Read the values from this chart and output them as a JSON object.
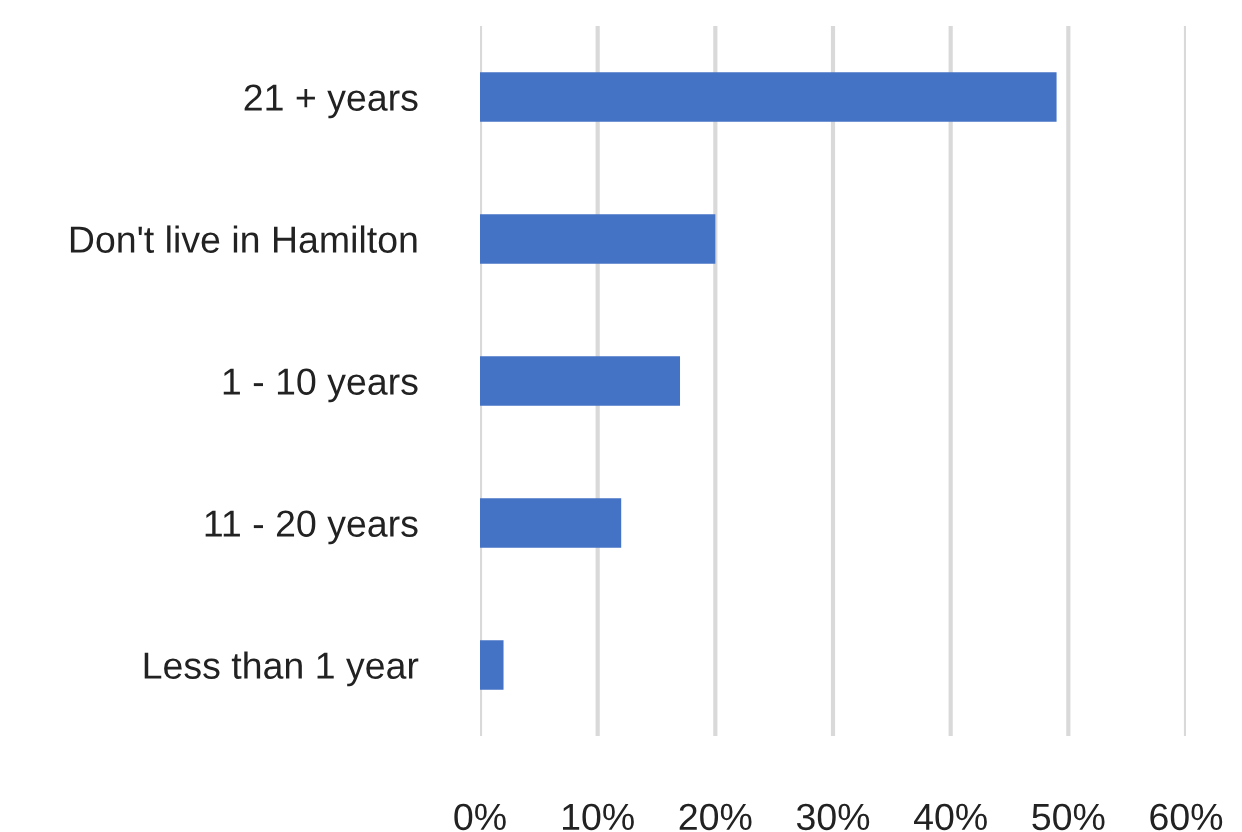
{
  "chart_data": {
    "type": "bar",
    "orientation": "horizontal",
    "categories": [
      "21 + years",
      "Don't live in Hamilton",
      "1 - 10 years",
      "11 - 20 years",
      "Less than 1 year"
    ],
    "values": [
      49,
      20,
      17,
      12,
      2
    ],
    "color": "#4472c4",
    "xlim": [
      0,
      60
    ],
    "xticks": [
      {
        "value": 0,
        "label": "0%"
      },
      {
        "value": 10,
        "label": "10%"
      },
      {
        "value": 20,
        "label": "20%"
      },
      {
        "value": 30,
        "label": "30%"
      },
      {
        "value": 40,
        "label": "40%"
      },
      {
        "value": 50,
        "label": "50%"
      },
      {
        "value": 60,
        "label": "60%"
      }
    ],
    "grid": "x"
  }
}
